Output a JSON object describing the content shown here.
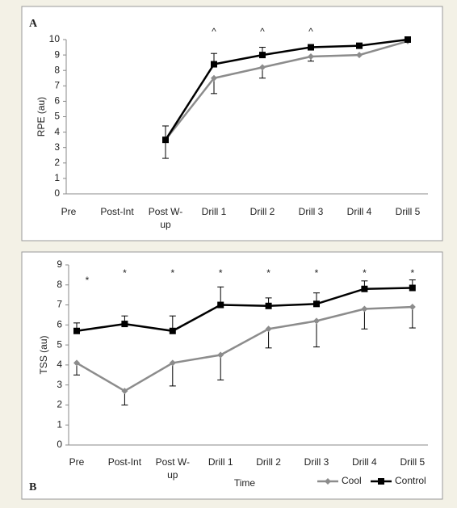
{
  "chart_data": [
    {
      "type": "line",
      "panel_label": "A",
      "ylabel": "RPE (au)",
      "categories": [
        "Pre",
        "Post-Int",
        "Post W-up",
        "Drill 1",
        "Drill 2",
        "Drill 3",
        "Drill 4",
        "Drill 5"
      ],
      "series": [
        {
          "name": "Cool",
          "color": "#8c8c8c",
          "marker": "diamond",
          "values": [
            null,
            null,
            3.5,
            7.5,
            8.2,
            8.9,
            9.0,
            9.9
          ],
          "errors": [
            null,
            null,
            1.2,
            1.0,
            0.7,
            0.3,
            null,
            null
          ],
          "error_direction": "down"
        },
        {
          "name": "Control",
          "color": "#000000",
          "marker": "square",
          "values": [
            null,
            null,
            3.5,
            8.4,
            9.0,
            9.5,
            9.6,
            10.0
          ],
          "errors": [
            null,
            null,
            0.9,
            0.7,
            0.5,
            null,
            null,
            null
          ],
          "error_direction": "up"
        }
      ],
      "annotations": [
        {
          "text": "^",
          "x": "Drill 1"
        },
        {
          "text": "^",
          "x": "Drill 2"
        },
        {
          "text": "^",
          "x": "Drill 3"
        }
      ],
      "ylim": [
        0,
        10
      ],
      "yticks": [
        0,
        1,
        2,
        3,
        4,
        5,
        6,
        7,
        8,
        9,
        10
      ],
      "legend": false
    },
    {
      "type": "line",
      "panel_label": "B",
      "ylabel": "TSS (au)",
      "xlabel": "Time",
      "categories": [
        "Pre",
        "Post-Int",
        "Post W-up",
        "Drill 1",
        "Drill 2",
        "Drill 3",
        "Drill 4",
        "Drill 5"
      ],
      "series": [
        {
          "name": "Cool",
          "color": "#8c8c8c",
          "marker": "diamond",
          "values": [
            4.1,
            2.7,
            4.1,
            4.5,
            5.8,
            6.2,
            6.8,
            6.9
          ],
          "errors": [
            0.6,
            0.7,
            1.15,
            1.25,
            0.95,
            1.3,
            1.0,
            1.05
          ],
          "error_direction": "down"
        },
        {
          "name": "Control",
          "color": "#000000",
          "marker": "square",
          "values": [
            5.7,
            6.05,
            5.7,
            7.0,
            6.95,
            7.05,
            7.8,
            7.85
          ],
          "errors": [
            0.4,
            0.4,
            0.75,
            0.9,
            0.4,
            0.55,
            0.4,
            0.4
          ],
          "error_direction": "up"
        }
      ],
      "annotations": [
        {
          "text": "*",
          "x": "Pre"
        },
        {
          "text": "*",
          "x": "Post-Int"
        },
        {
          "text": "*",
          "x": "Post W-up"
        },
        {
          "text": "*",
          "x": "Drill 1"
        },
        {
          "text": "*",
          "x": "Drill 2"
        },
        {
          "text": "*",
          "x": "Drill 3"
        },
        {
          "text": "*",
          "x": "Drill 4"
        },
        {
          "text": "*",
          "x": "Drill 5"
        }
      ],
      "ylim": [
        0,
        9
      ],
      "yticks": [
        0,
        1,
        2,
        3,
        4,
        5,
        6,
        7,
        8,
        9
      ],
      "legend": "bottom-right"
    }
  ]
}
